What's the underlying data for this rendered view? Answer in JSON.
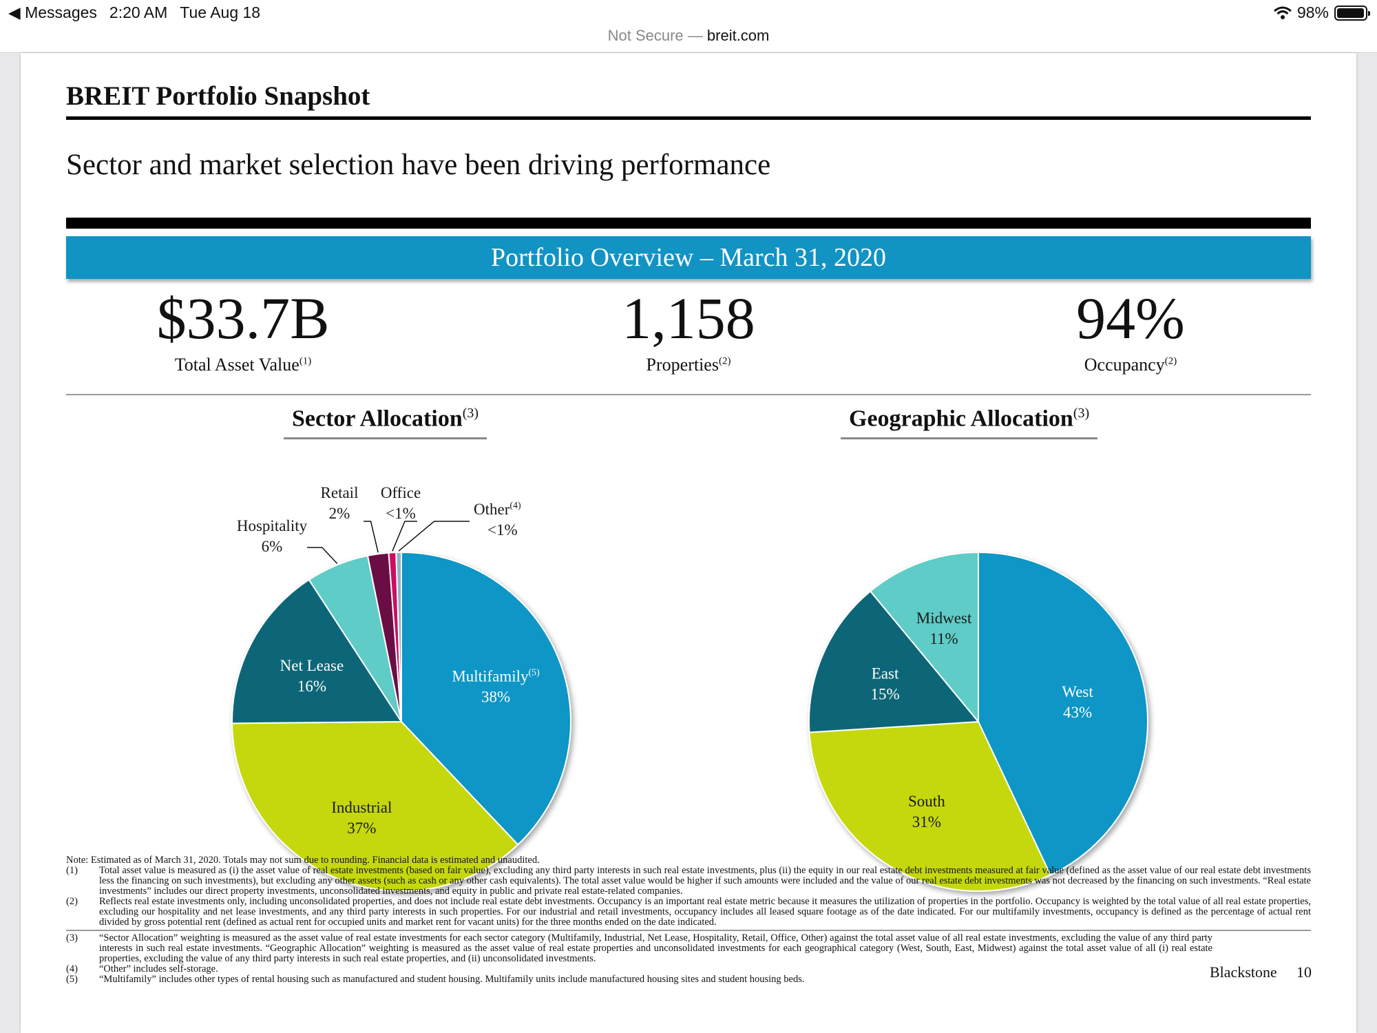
{
  "status_bar": {
    "back_label": "Messages",
    "time": "2:20 AM",
    "date": "Tue Aug 18",
    "battery": "98%",
    "battery_level": 0.98
  },
  "url_bar": {
    "security": "Not Secure — ",
    "domain": "breit.com"
  },
  "header": {
    "title": "BREIT Portfolio Snapshot",
    "subtitle": "Sector and market selection have been driving performance"
  },
  "overview": {
    "banner": "Portfolio Overview – March 31, 2020",
    "stats": [
      {
        "value": "$33.7B",
        "label": "Total Asset Value",
        "note": "(1)"
      },
      {
        "value": "1,158",
        "label": "Properties",
        "note": "(2)"
      },
      {
        "value": "94%",
        "label": "Occupancy",
        "note": "(2)"
      }
    ]
  },
  "chart_data": [
    {
      "type": "pie",
      "title": "Sector Allocation",
      "title_note": "(3)",
      "slices": [
        {
          "name": "Multifamily",
          "note": "(5)",
          "value": 38,
          "label": "38%",
          "color": "#0f96c6"
        },
        {
          "name": "Industrial",
          "value": 37,
          "label": "37%",
          "color": "#c5d80a"
        },
        {
          "name": "Net Lease",
          "value": 16,
          "label": "16%",
          "color": "#0b6677"
        },
        {
          "name": "Hospitality",
          "value": 6,
          "label": "6%",
          "color": "#5fccc7"
        },
        {
          "name": "Retail",
          "value": 2,
          "label": "2%",
          "color": "#6b0a45"
        },
        {
          "name": "Office",
          "value": 0.7,
          "label": "<1%",
          "color": "#cc0e63"
        },
        {
          "name": "Other",
          "note": "(4)",
          "value": 0.5,
          "label": "<1%",
          "color": "#8fb3c6"
        }
      ]
    },
    {
      "type": "pie",
      "title": "Geographic Allocation",
      "title_note": "(3)",
      "slices": [
        {
          "name": "West",
          "value": 43,
          "label": "43%",
          "color": "#0f96c6"
        },
        {
          "name": "South",
          "value": 31,
          "label": "31%",
          "color": "#c5d80a"
        },
        {
          "name": "East",
          "value": 15,
          "label": "15%",
          "color": "#0b6677"
        },
        {
          "name": "Midwest",
          "value": 11,
          "label": "11%",
          "color": "#5fccc7"
        }
      ]
    }
  ],
  "notes": {
    "intro": "Note: Estimated as of March 31, 2020. Totals may not sum due to rounding. Financial data is estimated and unaudited.",
    "items": [
      {
        "num": "(1)",
        "text": "Total asset value is measured as (i) the asset value of real estate investments (based on fair value), excluding any third party interests in such real estate investments, plus (ii) the equity in our real estate debt investments measured at fair value (defined as the asset value of our real estate debt investments less the financing on such investments), but excluding any other assets (such as cash or any other cash equivalents). The total asset value would be higher if such amounts were included and the value of our real estate debt investments was not decreased by the financing on such investments. “Real estate investments” includes our direct property investments, unconsolidated investments, and equity in public and private real estate-related companies."
      },
      {
        "num": "(2)",
        "text": "Reflects real estate investments only, including unconsolidated properties, and does not include real estate debt investments. Occupancy is an important real estate metric because it measures the utilization of properties in the portfolio. Occupancy is weighted by the total value of all real estate properties, excluding our hospitality and net lease investments, and any third party interests in such properties. For our industrial and retail investments, occupancy includes all leased square footage as of the date indicated. For our multifamily investments, occupancy is defined as the percentage of actual rent divided by gross potential rent (defined as actual rent for occupied units and market rent for vacant units) for the three months ended on the date indicated."
      },
      {
        "num": "(3)",
        "text": "“Sector Allocation” weighting is measured as the asset value of real estate investments for each sector category (Multifamily, Industrial, Net Lease, Hospitality, Retail, Office, Other) against the total asset value of all real estate investments, excluding the value of any third party interests in such real estate investments. “Geographic Allocation” weighting is measured as the asset value of real estate properties and unconsolidated investments for each geographical category (West, South, East, Midwest) against the total asset value of all (i) real estate properties, excluding the value of any third party interests in such real estate properties, and (ii) unconsolidated investments."
      },
      {
        "num": "(4)",
        "text": "“Other” includes self-storage."
      },
      {
        "num": "(5)",
        "text": "“Multifamily” includes other types of rental housing such as manufactured and student housing. Multifamily units include manufactured housing sites and student housing beds."
      }
    ]
  },
  "footer": {
    "brand": "Blackstone",
    "page": "10"
  }
}
